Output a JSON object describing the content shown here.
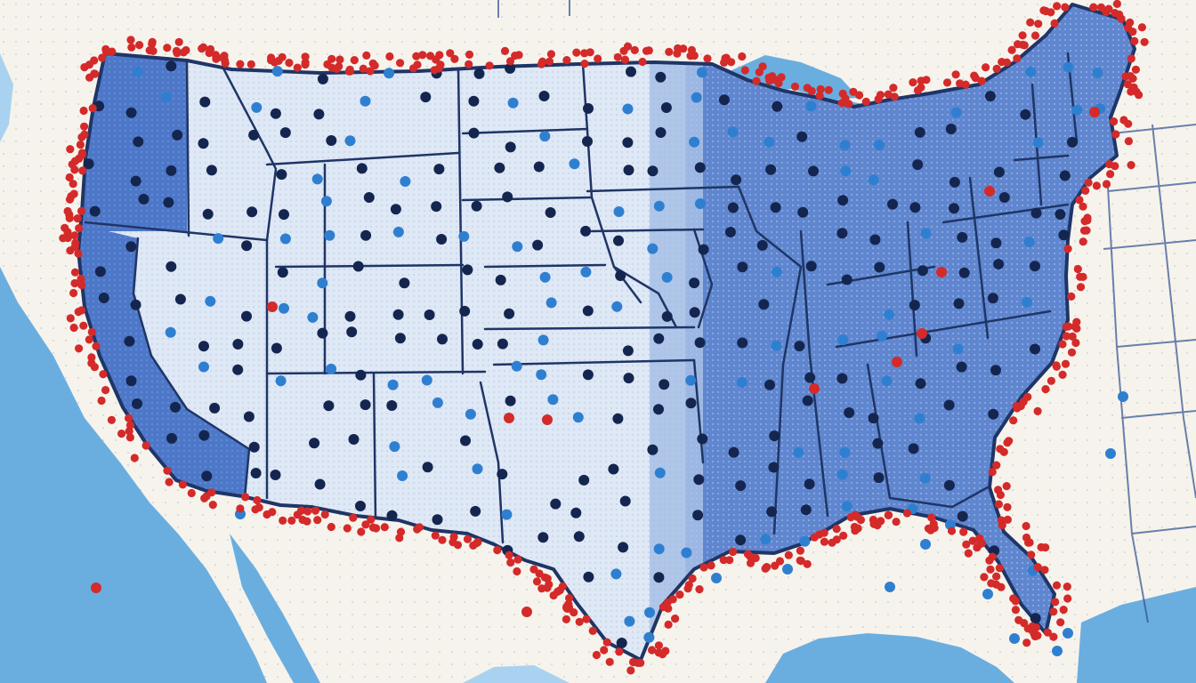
{
  "map": {
    "region": "contiguous-united-states",
    "labels_present": false,
    "colors": {
      "paper": "#f6f3ec",
      "ocean": "#6aaee0",
      "ocean_light": "#a9d2f0",
      "land_west": "#dfe8f5",
      "land_east": "#5f86cf",
      "coast_strip": "#4d77c8",
      "border_line": "#1f3566",
      "marker_navy": "#14264f",
      "marker_blue": "#2f7fd1",
      "marker_red": "#d42a2a",
      "stipple": "#9db4de"
    },
    "marker_categories": [
      "navy",
      "blue",
      "red"
    ]
  }
}
